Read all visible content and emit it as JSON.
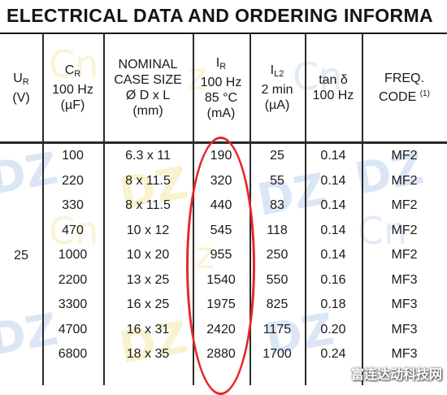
{
  "title": "ELECTRICAL DATA AND ORDERING INFORMA",
  "headers": {
    "ur": {
      "main": "U",
      "sub": "R",
      "unit": "(V)"
    },
    "cr": {
      "main": "C",
      "sub": "R",
      "line2": "100 Hz",
      "unit": "(µF)"
    },
    "case": {
      "line1": "NOMINAL",
      "line2": "CASE SIZE",
      "line3": "Ø D x L",
      "unit": "(mm)"
    },
    "ir": {
      "main": "I",
      "sub": "R",
      "line2": "100 Hz",
      "line3": "85 °C",
      "unit": "(mA)"
    },
    "il2": {
      "main": "I",
      "sub": "L2",
      "line2": "2 min",
      "unit": "(µA)"
    },
    "tan": {
      "line1": "tan δ",
      "line2": "100 Hz"
    },
    "freq": {
      "line1": "FREQ.",
      "line2": "CODE",
      "sup": "(1)"
    }
  },
  "ur_value": "25",
  "rows": [
    {
      "cr": "100",
      "case": "6.3 x 11",
      "ir": "190",
      "il2": "25",
      "tan": "0.14",
      "freq": "MF2"
    },
    {
      "cr": "220",
      "case": "8 x 11.5",
      "ir": "320",
      "il2": "55",
      "tan": "0.14",
      "freq": "MF2"
    },
    {
      "cr": "330",
      "case": "8 x 11.5",
      "ir": "440",
      "il2": "83",
      "tan": "0.14",
      "freq": "MF2"
    },
    {
      "cr": "470",
      "case": "10 x 12",
      "ir": "545",
      "il2": "118",
      "tan": "0.14",
      "freq": "MF2"
    },
    {
      "cr": "1000",
      "case": "10 x 20",
      "ir": "955",
      "il2": "250",
      "tan": "0.14",
      "freq": "MF2"
    },
    {
      "cr": "2200",
      "case": "13 x 25",
      "ir": "1540",
      "il2": "550",
      "tan": "0.16",
      "freq": "MF3"
    },
    {
      "cr": "3300",
      "case": "16 x 25",
      "ir": "1975",
      "il2": "825",
      "tan": "0.18",
      "freq": "MF3"
    },
    {
      "cr": "4700",
      "case": "16 x 31",
      "ir": "2420",
      "il2": "1175",
      "tan": "0.20",
      "freq": "MF3"
    },
    {
      "cr": "6800",
      "case": "18 x 35",
      "ir": "2880",
      "il2": "1700",
      "tan": "0.24",
      "freq": "MF3"
    }
  ],
  "brand_watermark": "富连达动科技网",
  "colors": {
    "highlight": "#e8262a",
    "watermark_blue": "#bcd2ec",
    "watermark_yellow": "#f2e7a6"
  }
}
